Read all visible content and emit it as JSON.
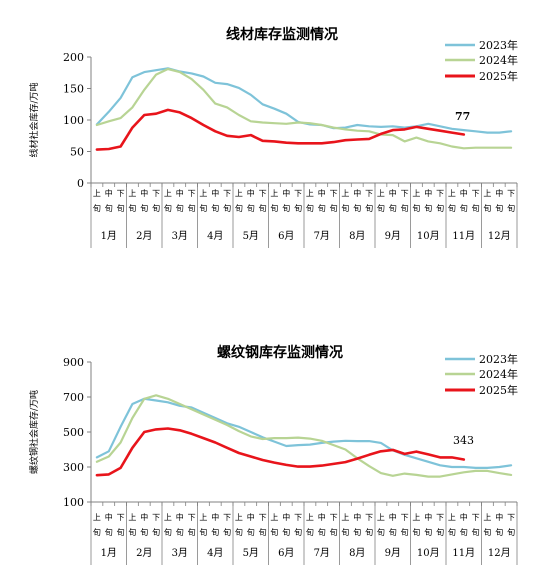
{
  "chart_data": [
    {
      "type": "line",
      "title": "线材库存监测情况",
      "ylabel": "线材社会库存/万吨",
      "ylim": [
        0,
        200
      ],
      "yticks": [
        0,
        50,
        100,
        150,
        200
      ],
      "grid": false,
      "legend_position": "top-right",
      "period_labels": [
        "上旬",
        "中旬",
        "下旬"
      ],
      "months": [
        "1月",
        "2月",
        "3月",
        "4月",
        "5月",
        "6月",
        "7月",
        "8月",
        "9月",
        "10月",
        "11月",
        "12月"
      ],
      "annotation": "77",
      "series": [
        {
          "name": "2023年",
          "color": "#7EC3D9",
          "values": [
            93,
            113,
            135,
            168,
            176,
            179,
            182,
            177,
            174,
            169,
            159,
            157,
            151,
            140,
            125,
            118,
            110,
            97,
            93,
            92,
            87,
            88,
            92,
            90,
            89,
            90,
            88,
            90,
            94,
            90,
            86,
            84,
            82,
            80,
            80,
            82
          ]
        },
        {
          "name": "2024年",
          "color": "#B8D494",
          "values": [
            92,
            98,
            103,
            120,
            148,
            172,
            181,
            176,
            165,
            148,
            126,
            120,
            108,
            98,
            96,
            95,
            94,
            96,
            95,
            92,
            88,
            85,
            83,
            82,
            77,
            76,
            66,
            72,
            66,
            63,
            58,
            55,
            56,
            56,
            56,
            56
          ]
        },
        {
          "name": "2025年",
          "color": "#E8141B",
          "values": [
            53,
            54,
            58,
            88,
            108,
            110,
            116,
            112,
            103,
            92,
            82,
            75,
            73,
            76,
            67,
            66,
            64,
            63,
            63,
            63,
            65,
            68,
            69,
            70,
            78,
            84,
            85,
            89,
            86,
            83,
            80,
            77
          ]
        }
      ]
    },
    {
      "type": "line",
      "title": "螺纹钢库存监测情况",
      "ylabel": "螺纹钢社会库存/万吨",
      "ylim": [
        100,
        900
      ],
      "yticks": [
        100,
        300,
        500,
        700,
        900
      ],
      "grid": false,
      "legend_position": "top-right",
      "period_labels": [
        "上旬",
        "中旬",
        "下旬"
      ],
      "months": [
        "1月",
        "2月",
        "3月",
        "4月",
        "5月",
        "6月",
        "7月",
        "8月",
        "9月",
        "10月",
        "11月",
        "12月"
      ],
      "annotation": "343",
      "series": [
        {
          "name": "2023年",
          "color": "#7EC3D9",
          "values": [
            355,
            390,
            530,
            660,
            690,
            680,
            670,
            650,
            640,
            610,
            580,
            550,
            530,
            500,
            470,
            445,
            420,
            425,
            428,
            438,
            445,
            450,
            448,
            448,
            438,
            395,
            370,
            350,
            330,
            310,
            300,
            300,
            295,
            295,
            300,
            310
          ]
        },
        {
          "name": "2024年",
          "color": "#B8D494",
          "values": [
            330,
            360,
            440,
            580,
            690,
            710,
            690,
            660,
            630,
            600,
            570,
            540,
            505,
            475,
            460,
            465,
            465,
            468,
            462,
            450,
            425,
            400,
            350,
            305,
            265,
            250,
            262,
            255,
            245,
            245,
            258,
            270,
            278,
            278,
            265,
            255
          ]
        },
        {
          "name": "2025年",
          "color": "#E8141B",
          "values": [
            253,
            258,
            295,
            410,
            500,
            515,
            520,
            510,
            490,
            465,
            440,
            410,
            380,
            360,
            340,
            325,
            312,
            302,
            302,
            308,
            318,
            328,
            348,
            370,
            390,
            398,
            375,
            388,
            372,
            355,
            355,
            343
          ]
        }
      ]
    }
  ]
}
